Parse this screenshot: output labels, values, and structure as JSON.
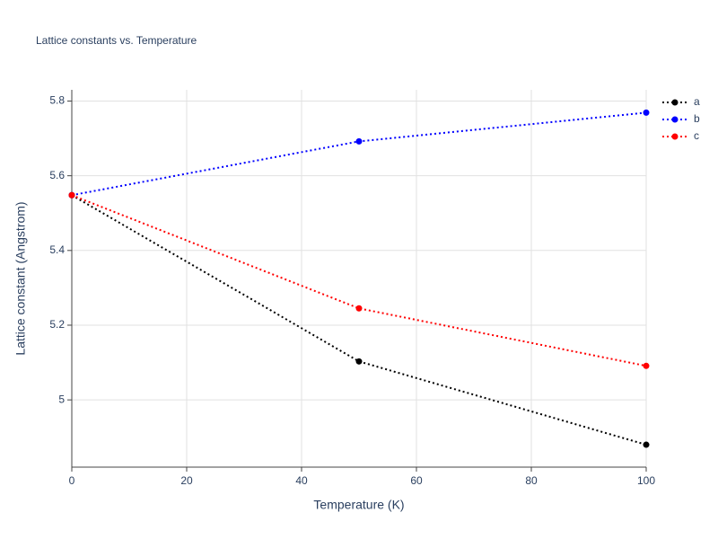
{
  "chart_data": {
    "type": "line",
    "title": "Lattice constants vs. Temperature",
    "x_label": "Temperature (K)",
    "y_label": "Lattice constant (Angstrom)",
    "x": [
      0,
      50,
      100
    ],
    "series": [
      {
        "name": "a",
        "color": "#000000",
        "values": [
          5.548,
          5.103,
          4.88
        ]
      },
      {
        "name": "b",
        "color": "#0000ff",
        "values": [
          5.548,
          5.692,
          5.769
        ]
      },
      {
        "name": "c",
        "color": "#ff0000",
        "values": [
          5.548,
          5.245,
          5.091
        ]
      }
    ],
    "xlim": [
      0,
      100
    ],
    "xticks": [
      0,
      20,
      40,
      60,
      80,
      100
    ],
    "ylim": [
      4.82,
      5.83
    ],
    "yticks": [
      5,
      5.2,
      5.4,
      5.6,
      5.8
    ],
    "grid": true,
    "legend": "right",
    "line_style": "dotted"
  }
}
